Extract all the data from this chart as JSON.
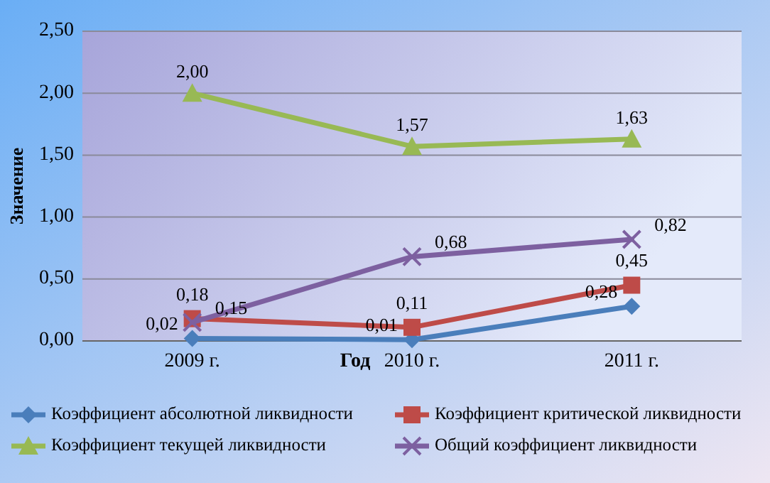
{
  "chart_data": {
    "type": "line",
    "xlabel": "Год",
    "ylabel": "Значение",
    "categories": [
      "2009 г.",
      "2010 г.",
      "2011 г."
    ],
    "series": [
      {
        "name": "Коэффициент абсолютной ликвидности",
        "color": "#4a7ebb",
        "marker": "diamond",
        "values": [
          0.02,
          0.01,
          0.28
        ],
        "value_labels": [
          "0,02",
          "0,01",
          "0,28"
        ]
      },
      {
        "name": "Коэффициент критической ликвидности",
        "color": "#be4b48",
        "marker": "square",
        "values": [
          0.18,
          0.11,
          0.45
        ],
        "value_labels": [
          "0,18",
          "0,11",
          "0,45"
        ]
      },
      {
        "name": "Коэффициент текущей ликвидности",
        "color": "#98b954",
        "marker": "triangle",
        "values": [
          2.0,
          1.57,
          1.63
        ],
        "value_labels": [
          "2,00",
          "1,57",
          "1,63"
        ]
      },
      {
        "name": "Общий коэффициент ликвидности",
        "color": "#7d60a0",
        "marker": "cross",
        "values": [
          0.15,
          0.68,
          0.82
        ],
        "value_labels": [
          "0,15",
          "0,68",
          "0,82"
        ]
      }
    ],
    "ylim": [
      0,
      2.5
    ],
    "yticks": [
      {
        "value": 0,
        "label": "0,00"
      },
      {
        "value": 0.5,
        "label": "0,50"
      },
      {
        "value": 1,
        "label": "1,00"
      },
      {
        "value": 1.5,
        "label": "1,50"
      },
      {
        "value": 2,
        "label": "2,00"
      },
      {
        "value": 2.5,
        "label": "2,50"
      }
    ],
    "grid": "y",
    "legend": "bottom"
  }
}
